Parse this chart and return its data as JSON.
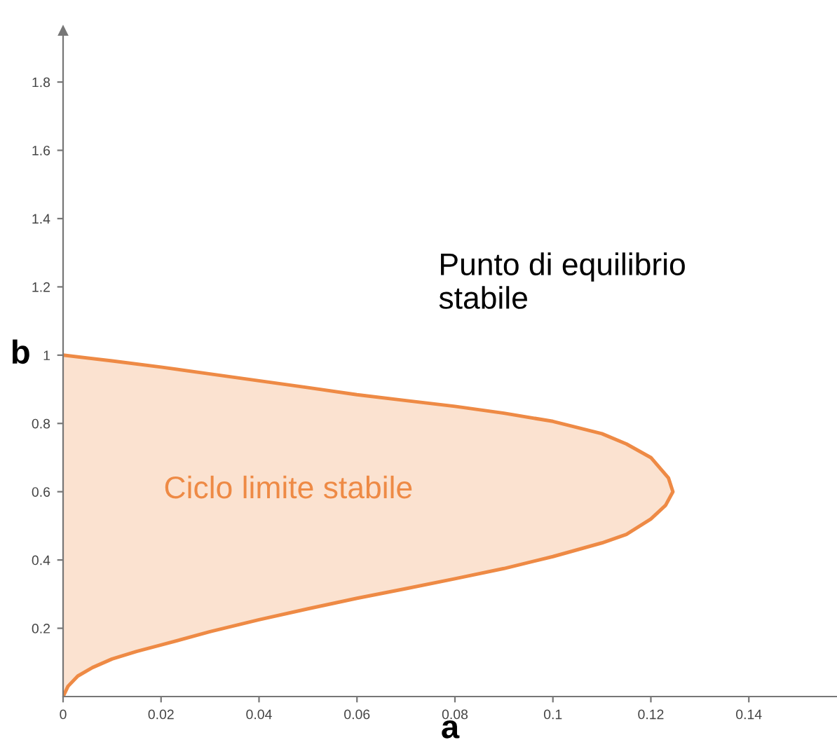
{
  "chart_data": {
    "type": "area",
    "xlabel": "a",
    "ylabel": "b",
    "x": [
      0,
      0.001,
      0.003,
      0.006,
      0.01,
      0.015,
      0.02,
      0.03,
      0.04,
      0.05,
      0.06,
      0.07,
      0.08,
      0.09,
      0.1,
      0.11,
      0.115,
      0.12,
      0.123,
      0.1245,
      0.1236,
      0.12,
      0.115,
      0.11,
      0.1,
      0.09,
      0.08,
      0.07,
      0.06,
      0.05,
      0.04,
      0.03,
      0.02,
      0.01,
      0
    ],
    "series": [
      {
        "color": "#ee8a45",
        "values": [
          0,
          0.03,
          0.06,
          0.085,
          0.11,
          0.132,
          0.151,
          0.19,
          0.225,
          0.257,
          0.288,
          0.316,
          0.345,
          0.375,
          0.41,
          0.45,
          0.475,
          0.52,
          0.56,
          0.6,
          0.64,
          0.7,
          0.74,
          0.77,
          0.806,
          0.83,
          0.85,
          0.867,
          0.884,
          0.905,
          0.925,
          0.945,
          0.965,
          0.983,
          1
        ]
      }
    ],
    "xlim": [
      0,
      0.158
    ],
    "ylim": [
      0,
      1.95
    ],
    "xticks": [
      0,
      0.02,
      0.04,
      0.06,
      0.08,
      0.1,
      0.12,
      0.14
    ],
    "yticks": [
      0.2,
      0.4,
      0.6,
      0.8,
      1,
      1.2,
      1.4,
      1.6,
      1.8
    ],
    "annotations": [
      "Punto di equilibrio\nstabile",
      "Ciclo limite stabile"
    ],
    "grid": false,
    "legend": false
  }
}
